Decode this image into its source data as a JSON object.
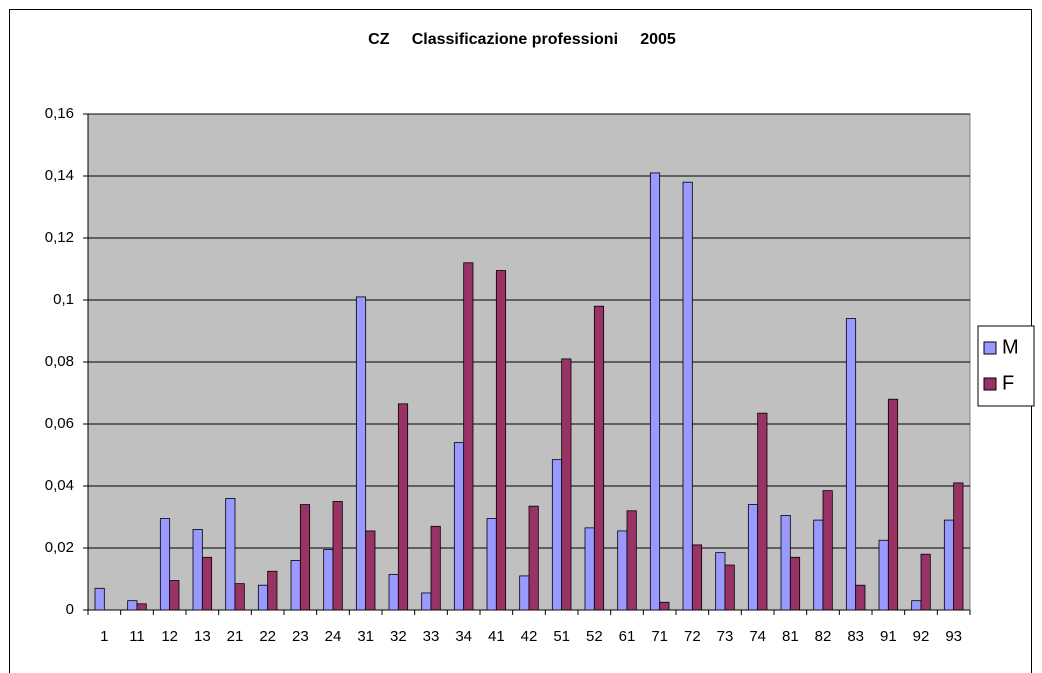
{
  "chart_data": {
    "type": "bar",
    "title": "CZ     Classificazione professioni     2005",
    "categories": [
      "1",
      "11",
      "12",
      "13",
      "21",
      "22",
      "23",
      "24",
      "31",
      "32",
      "33",
      "34",
      "41",
      "42",
      "51",
      "52",
      "61",
      "71",
      "72",
      "73",
      "74",
      "81",
      "82",
      "83",
      "91",
      "92",
      "93"
    ],
    "series": [
      {
        "name": "M",
        "color": "#9999ff",
        "values": [
          0.007,
          0.003,
          0.0295,
          0.026,
          0.036,
          0.008,
          0.016,
          0.0195,
          0.101,
          0.0115,
          0.0055,
          0.054,
          0.0295,
          0.011,
          0.0485,
          0.0265,
          0.0255,
          0.141,
          0.138,
          0.0185,
          0.034,
          0.0305,
          0.029,
          0.094,
          0.0225,
          0.003,
          0.029
        ]
      },
      {
        "name": "F",
        "color": "#993366",
        "values": [
          0,
          0.002,
          0.0095,
          0.017,
          0.0085,
          0.0125,
          0.034,
          0.035,
          0.0255,
          0.0665,
          0.027,
          0.112,
          0.1095,
          0.0335,
          0.081,
          0.098,
          0.032,
          0.0025,
          0.021,
          0.0145,
          0.0635,
          0.017,
          0.0385,
          0.008,
          0.068,
          0.018,
          0.041
        ]
      }
    ],
    "ylim": [
      0,
      0.16
    ],
    "yticks": [
      0,
      {
        "value": 0.02,
        "label": "0,02"
      },
      {
        "value": 0.04,
        "label": "0,04"
      },
      {
        "value": 0.06,
        "label": "0,06"
      },
      {
        "value": 0.08,
        "label": "0,08"
      },
      {
        "value": 0.1,
        "label": "0,1"
      },
      {
        "value": 0.12,
        "label": "0,12"
      },
      {
        "value": 0.14,
        "label": "0,14"
      },
      {
        "value": 0.16,
        "label": "0,16"
      }
    ],
    "grid": true,
    "legend": "right"
  }
}
